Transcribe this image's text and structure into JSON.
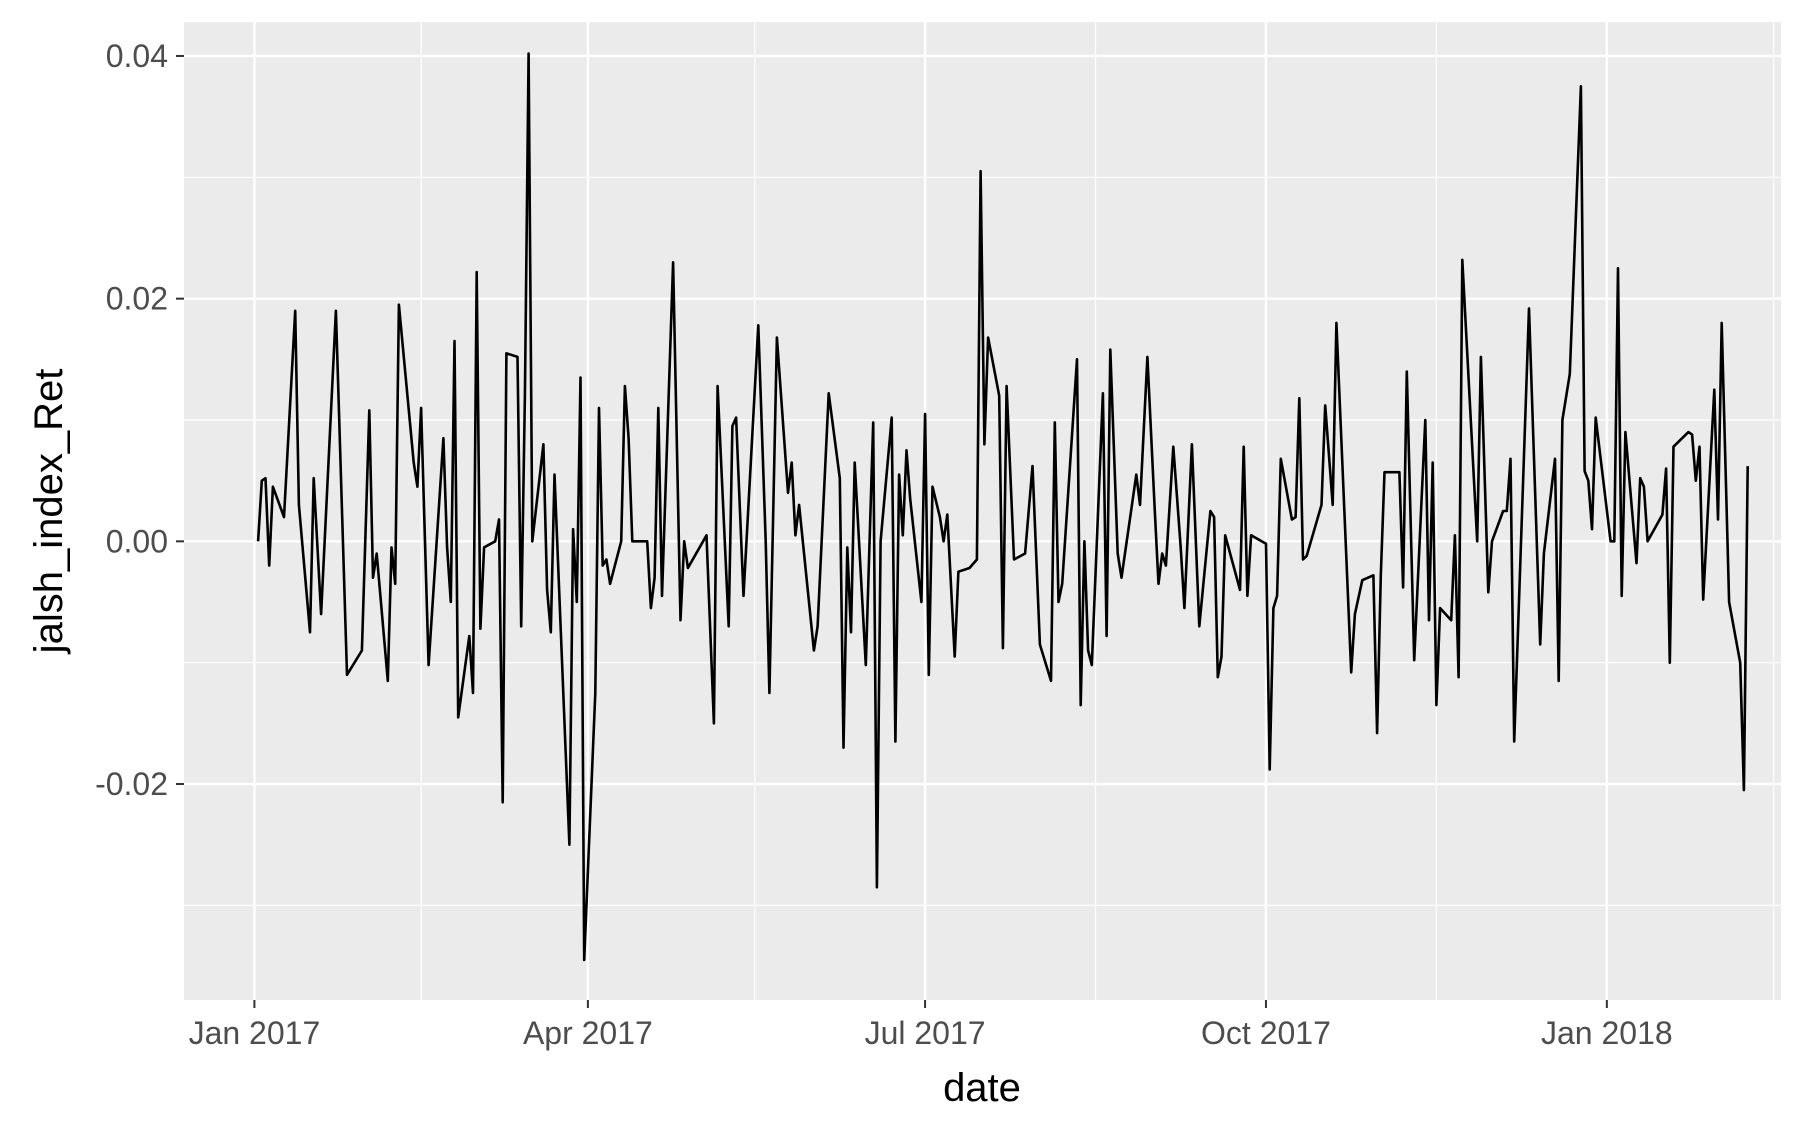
{
  "chart_data": {
    "type": "line",
    "title": "",
    "xlabel": "date",
    "ylabel": "jalsh_index_Ret",
    "xlim": [
      "2016-12-13",
      "2018-02-17"
    ],
    "ylim": [
      -0.0378,
      0.0428
    ],
    "x_ticks": [
      {
        "date": "2017-01-01",
        "label": "Jan 2017"
      },
      {
        "date": "2017-04-01",
        "label": "Apr 2017"
      },
      {
        "date": "2017-07-01",
        "label": "Jul 2017"
      },
      {
        "date": "2017-10-01",
        "label": "Oct 2017"
      },
      {
        "date": "2018-01-01",
        "label": "Jan 2018"
      }
    ],
    "x_minor_ticks": [
      "2017-02-15",
      "2017-05-16",
      "2017-08-16",
      "2017-11-16",
      "2018-02-15"
    ],
    "y_ticks": [
      {
        "value": -0.02,
        "label": "-0.02"
      },
      {
        "value": 0.0,
        "label": "0.00"
      },
      {
        "value": 0.02,
        "label": "0.02"
      },
      {
        "value": 0.04,
        "label": "0.04"
      }
    ],
    "y_minor_ticks": [
      -0.03,
      -0.01,
      0.01,
      0.03
    ],
    "grid": true,
    "panel_background": "#ebebeb",
    "grid_color": "#ffffff",
    "line_color": "#000000",
    "series": [
      {
        "points": [
          [
            "2017-01-02",
            0.0
          ],
          [
            "2017-01-03",
            0.005
          ],
          [
            "2017-01-04",
            0.0052
          ],
          [
            "2017-01-05",
            -0.002
          ],
          [
            "2017-01-06",
            0.0045
          ],
          [
            "2017-01-09",
            0.002
          ],
          [
            "2017-01-12",
            0.019
          ],
          [
            "2017-01-13",
            0.003
          ],
          [
            "2017-01-16",
            -0.0075
          ],
          [
            "2017-01-17",
            0.0052
          ],
          [
            "2017-01-19",
            -0.006
          ],
          [
            "2017-01-23",
            0.019
          ],
          [
            "2017-01-26",
            -0.011
          ],
          [
            "2017-01-30",
            -0.009
          ],
          [
            "2017-02-01",
            0.0108
          ],
          [
            "2017-02-02",
            -0.003
          ],
          [
            "2017-02-03",
            -0.001
          ],
          [
            "2017-02-06",
            -0.0115
          ],
          [
            "2017-02-07",
            -0.0005
          ],
          [
            "2017-02-08",
            -0.0035
          ],
          [
            "2017-02-09",
            0.0195
          ],
          [
            "2017-02-13",
            0.0065
          ],
          [
            "2017-02-14",
            0.0045
          ],
          [
            "2017-02-15",
            0.011
          ],
          [
            "2017-02-17",
            -0.0102
          ],
          [
            "2017-02-21",
            0.0085
          ],
          [
            "2017-02-22",
            -0.0005
          ],
          [
            "2017-02-23",
            -0.005
          ],
          [
            "2017-02-24",
            0.0165
          ],
          [
            "2017-02-25",
            -0.0145
          ],
          [
            "2017-02-28",
            -0.0078
          ],
          [
            "2017-03-01",
            -0.0125
          ],
          [
            "2017-03-02",
            0.0222
          ],
          [
            "2017-03-03",
            -0.0072
          ],
          [
            "2017-03-04",
            -0.0005
          ],
          [
            "2017-03-07",
            0.0
          ],
          [
            "2017-03-08",
            0.0018
          ],
          [
            "2017-03-09",
            -0.0215
          ],
          [
            "2017-03-10",
            0.0155
          ],
          [
            "2017-03-13",
            0.0152
          ],
          [
            "2017-03-14",
            -0.007
          ],
          [
            "2017-03-15",
            0.012
          ],
          [
            "2017-03-16",
            0.0402
          ],
          [
            "2017-03-17",
            0.0
          ],
          [
            "2017-03-20",
            0.008
          ],
          [
            "2017-03-21",
            -0.004
          ],
          [
            "2017-03-22",
            -0.0075
          ],
          [
            "2017-03-23",
            0.0055
          ],
          [
            "2017-03-27",
            -0.025
          ],
          [
            "2017-03-28",
            0.001
          ],
          [
            "2017-03-29",
            -0.005
          ],
          [
            "2017-03-30",
            0.0135
          ],
          [
            "2017-03-31",
            -0.0345
          ],
          [
            "2017-04-03",
            -0.0125
          ],
          [
            "2017-04-04",
            0.011
          ],
          [
            "2017-04-05",
            -0.002
          ],
          [
            "2017-04-06",
            -0.0015
          ],
          [
            "2017-04-07",
            -0.0035
          ],
          [
            "2017-04-10",
            0.0
          ],
          [
            "2017-04-11",
            0.0128
          ],
          [
            "2017-04-12",
            0.0085
          ],
          [
            "2017-04-13",
            0.0
          ],
          [
            "2017-04-17",
            0.0
          ],
          [
            "2017-04-18",
            -0.0055
          ],
          [
            "2017-04-19",
            -0.003
          ],
          [
            "2017-04-20",
            0.011
          ],
          [
            "2017-04-21",
            -0.0045
          ],
          [
            "2017-04-24",
            0.023
          ],
          [
            "2017-04-26",
            -0.0065
          ],
          [
            "2017-04-27",
            0.0
          ],
          [
            "2017-04-28",
            -0.0022
          ],
          [
            "2017-05-03",
            0.0005
          ],
          [
            "2017-05-05",
            -0.015
          ],
          [
            "2017-05-06",
            0.0128
          ],
          [
            "2017-05-09",
            -0.007
          ],
          [
            "2017-05-10",
            0.0095
          ],
          [
            "2017-05-11",
            0.0102
          ],
          [
            "2017-05-13",
            -0.0045
          ],
          [
            "2017-05-17",
            0.0178
          ],
          [
            "2017-05-19",
            0.0
          ],
          [
            "2017-05-20",
            -0.0125
          ],
          [
            "2017-05-22",
            0.0168
          ],
          [
            "2017-05-25",
            0.004
          ],
          [
            "2017-05-26",
            0.0065
          ],
          [
            "2017-05-27",
            0.0005
          ],
          [
            "2017-05-28",
            0.003
          ],
          [
            "2017-06-01",
            -0.009
          ],
          [
            "2017-06-02",
            -0.007
          ],
          [
            "2017-06-05",
            0.0122
          ],
          [
            "2017-06-08",
            0.0052
          ],
          [
            "2017-06-09",
            -0.017
          ],
          [
            "2017-06-10",
            -0.0005
          ],
          [
            "2017-06-11",
            -0.0075
          ],
          [
            "2017-06-12",
            0.0065
          ],
          [
            "2017-06-15",
            -0.0102
          ],
          [
            "2017-06-17",
            0.0098
          ],
          [
            "2017-06-18",
            -0.0285
          ],
          [
            "2017-06-19",
            0.0
          ],
          [
            "2017-06-22",
            0.0102
          ],
          [
            "2017-06-23",
            -0.0165
          ],
          [
            "2017-06-24",
            0.0055
          ],
          [
            "2017-06-25",
            0.0005
          ],
          [
            "2017-06-26",
            0.0075
          ],
          [
            "2017-06-27",
            0.0035
          ],
          [
            "2017-06-30",
            -0.005
          ],
          [
            "2017-07-01",
            0.0105
          ],
          [
            "2017-07-02",
            -0.011
          ],
          [
            "2017-07-03",
            0.0045
          ],
          [
            "2017-07-05",
            0.002
          ],
          [
            "2017-07-06",
            0.0
          ],
          [
            "2017-07-07",
            0.0022
          ],
          [
            "2017-07-09",
            -0.0095
          ],
          [
            "2017-07-10",
            -0.0025
          ],
          [
            "2017-07-13",
            -0.0022
          ],
          [
            "2017-07-15",
            -0.0015
          ],
          [
            "2017-07-16",
            0.0305
          ],
          [
            "2017-07-17",
            0.008
          ],
          [
            "2017-07-18",
            0.0168
          ],
          [
            "2017-07-21",
            0.012
          ],
          [
            "2017-07-22",
            -0.0088
          ],
          [
            "2017-07-23",
            0.0128
          ],
          [
            "2017-07-25",
            -0.0015
          ],
          [
            "2017-07-28",
            -0.001
          ],
          [
            "2017-07-30",
            0.0062
          ],
          [
            "2017-08-01",
            -0.0085
          ],
          [
            "2017-08-04",
            -0.0115
          ],
          [
            "2017-08-05",
            0.0098
          ],
          [
            "2017-08-06",
            -0.005
          ],
          [
            "2017-08-07",
            -0.0035
          ],
          [
            "2017-08-11",
            0.015
          ],
          [
            "2017-08-12",
            -0.0135
          ],
          [
            "2017-08-13",
            0.0
          ],
          [
            "2017-08-14",
            -0.009
          ],
          [
            "2017-08-15",
            -0.0102
          ],
          [
            "2017-08-18",
            0.0122
          ],
          [
            "2017-08-19",
            -0.0078
          ],
          [
            "2017-08-20",
            0.0158
          ],
          [
            "2017-08-22",
            -0.001
          ],
          [
            "2017-08-23",
            -0.003
          ],
          [
            "2017-08-27",
            0.0055
          ],
          [
            "2017-08-28",
            0.003
          ],
          [
            "2017-08-30",
            0.0152
          ],
          [
            "2017-09-01",
            0.0025
          ],
          [
            "2017-09-02",
            -0.0035
          ],
          [
            "2017-09-03",
            -0.001
          ],
          [
            "2017-09-04",
            -0.002
          ],
          [
            "2017-09-06",
            0.0078
          ],
          [
            "2017-09-08",
            -0.0005
          ],
          [
            "2017-09-09",
            -0.0055
          ],
          [
            "2017-09-11",
            0.008
          ],
          [
            "2017-09-13",
            -0.007
          ],
          [
            "2017-09-16",
            0.0025
          ],
          [
            "2017-09-17",
            0.002
          ],
          [
            "2017-09-18",
            -0.0112
          ],
          [
            "2017-09-19",
            -0.0095
          ],
          [
            "2017-09-20",
            0.0005
          ],
          [
            "2017-09-24",
            -0.004
          ],
          [
            "2017-09-25",
            0.0078
          ],
          [
            "2017-09-26",
            -0.0045
          ],
          [
            "2017-09-27",
            0.0005
          ],
          [
            "2017-10-01",
            -0.0002
          ],
          [
            "2017-10-02",
            -0.0188
          ],
          [
            "2017-10-03",
            -0.0055
          ],
          [
            "2017-10-04",
            -0.0045
          ],
          [
            "2017-10-05",
            0.0068
          ],
          [
            "2017-10-08",
            0.0018
          ],
          [
            "2017-10-09",
            0.002
          ],
          [
            "2017-10-10",
            0.0118
          ],
          [
            "2017-10-11",
            -0.0015
          ],
          [
            "2017-10-12",
            -0.0012
          ],
          [
            "2017-10-16",
            0.003
          ],
          [
            "2017-10-17",
            0.0112
          ],
          [
            "2017-10-19",
            0.003
          ],
          [
            "2017-10-20",
            0.018
          ],
          [
            "2017-10-24",
            -0.0108
          ],
          [
            "2017-10-25",
            -0.006
          ],
          [
            "2017-10-27",
            -0.0032
          ],
          [
            "2017-10-30",
            -0.0028
          ],
          [
            "2017-10-31",
            -0.0158
          ],
          [
            "2017-11-01",
            -0.0028
          ],
          [
            "2017-11-02",
            0.0057
          ],
          [
            "2017-11-06",
            0.0057
          ],
          [
            "2017-11-07",
            -0.0038
          ],
          [
            "2017-11-08",
            0.014
          ],
          [
            "2017-11-10",
            -0.0098
          ],
          [
            "2017-11-12",
            0.0035
          ],
          [
            "2017-11-13",
            0.01
          ],
          [
            "2017-11-14",
            -0.0065
          ],
          [
            "2017-11-15",
            0.0065
          ],
          [
            "2017-11-16",
            -0.0135
          ],
          [
            "2017-11-17",
            -0.0055
          ],
          [
            "2017-11-20",
            -0.0065
          ],
          [
            "2017-11-21",
            0.0005
          ],
          [
            "2017-11-22",
            -0.0112
          ],
          [
            "2017-11-23",
            0.0232
          ],
          [
            "2017-11-27",
            0.0
          ],
          [
            "2017-11-28",
            0.0152
          ],
          [
            "2017-11-30",
            -0.0042
          ],
          [
            "2017-12-01",
            0.0
          ],
          [
            "2017-12-04",
            0.0025
          ],
          [
            "2017-12-05",
            0.0025
          ],
          [
            "2017-12-06",
            0.0068
          ],
          [
            "2017-12-07",
            -0.0165
          ],
          [
            "2017-12-11",
            0.0192
          ],
          [
            "2017-12-14",
            -0.0085
          ],
          [
            "2017-12-15",
            -0.001
          ],
          [
            "2017-12-18",
            0.0068
          ],
          [
            "2017-12-19",
            -0.0115
          ],
          [
            "2017-12-20",
            0.01
          ],
          [
            "2017-12-22",
            0.0138
          ],
          [
            "2017-12-25",
            0.0375
          ],
          [
            "2017-12-26",
            0.0058
          ],
          [
            "2017-12-27",
            0.005
          ],
          [
            "2017-12-28",
            0.001
          ],
          [
            "2017-12-29",
            0.0102
          ],
          [
            "2018-01-02",
            0.0
          ],
          [
            "2018-01-03",
            0.0
          ],
          [
            "2018-01-04",
            0.0225
          ],
          [
            "2018-01-05",
            -0.0045
          ],
          [
            "2018-01-06",
            0.009
          ],
          [
            "2018-01-09",
            -0.0018
          ],
          [
            "2018-01-10",
            0.0052
          ],
          [
            "2018-01-11",
            0.0045
          ],
          [
            "2018-01-12",
            0.0
          ],
          [
            "2018-01-16",
            0.0022
          ],
          [
            "2018-01-17",
            0.006
          ],
          [
            "2018-01-18",
            -0.01
          ],
          [
            "2018-01-19",
            0.0078
          ],
          [
            "2018-01-23",
            0.009
          ],
          [
            "2018-01-24",
            0.0088
          ],
          [
            "2018-01-25",
            0.005
          ],
          [
            "2018-01-26",
            0.0078
          ],
          [
            "2018-01-27",
            -0.0048
          ],
          [
            "2018-01-30",
            0.0125
          ],
          [
            "2018-01-31",
            0.0018
          ],
          [
            "2018-02-01",
            0.018
          ],
          [
            "2018-02-03",
            -0.005
          ],
          [
            "2018-02-06",
            -0.01
          ],
          [
            "2018-02-07",
            -0.0205
          ],
          [
            "2018-02-08",
            0.0062
          ]
        ]
      }
    ]
  }
}
